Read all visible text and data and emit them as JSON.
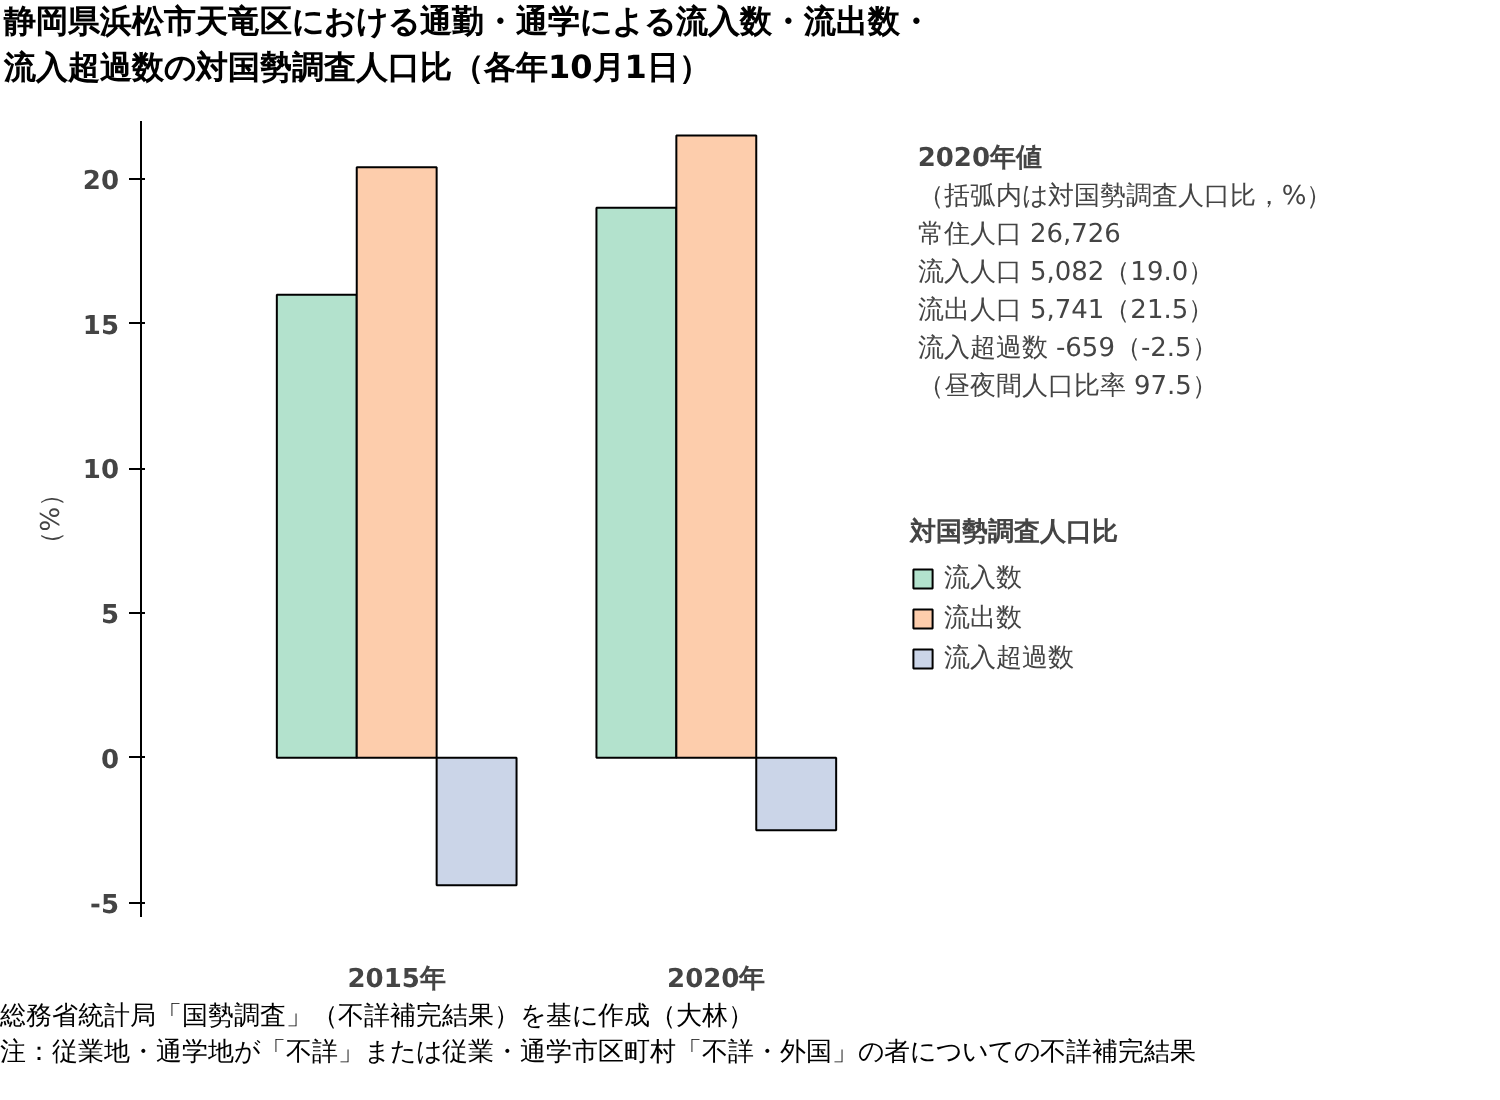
{
  "chart_data": {
    "type": "bar",
    "title": "静岡県浜松市天竜区における通勤・通学による流入数・流出数・流入超過数の対国勢調査人口比（各年10月1日）",
    "ylabel": "（%）",
    "categories": [
      "2015年",
      "2020年"
    ],
    "series": [
      {
        "name": "流入数",
        "color": "#b3e2cd",
        "values": [
          16.0,
          19.0
        ]
      },
      {
        "name": "流出数",
        "color": "#fdcdac",
        "values": [
          20.4,
          21.5
        ]
      },
      {
        "name": "流入超過数",
        "color": "#cbd5e8",
        "values": [
          -4.4,
          -2.5
        ]
      }
    ],
    "legend_title": "対国勢調査人口比",
    "legend": "right",
    "ylim": [
      -5.5,
      22
    ],
    "yticks": [
      -5,
      0,
      5,
      10,
      15,
      20
    ],
    "annotations": [
      "2020年値",
      "（括弧内は対国勢調査人口比，%）",
      "常住人口 26,726",
      "流入人口 5,082（19.0）",
      "流出人口 5,741（21.5）",
      "流入超過数 -659（-2.5）",
      "（昼夜間人口比率 97.5）",
      "総務省統計局「国勢調査」（不詳補完結果）を基に作成（大林）",
      "注：従業地・通学地が「不詳」または従業・通学市区町村「不詳・外国」の者についての不詳補完結果"
    ]
  }
}
